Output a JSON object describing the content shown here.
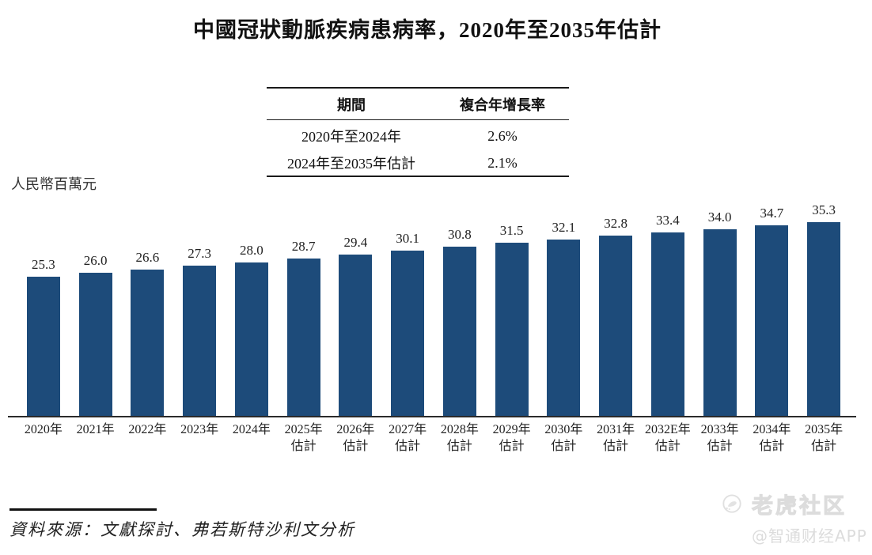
{
  "title": "中國冠狀動脈疾病患病率，2020年至2035年估計",
  "unit_label": "人民幣百萬元",
  "cagr_table": {
    "headers": [
      "期間",
      "複合年增長率"
    ],
    "rows": [
      {
        "period": "2020年至2024年",
        "value": "2.6%"
      },
      {
        "period": "2024年至2035年估計",
        "value": "2.1%"
      }
    ]
  },
  "source_note": "資料來源：文獻探討、弗若斯特沙利文分析",
  "watermarks": {
    "tiger_community": "老虎社区",
    "app_credit": "@智通财经APP",
    "logo_icon": "tiger-circle-icon"
  },
  "colors": {
    "bar": "#1d4b7a",
    "axis": "#2b2b2b",
    "watermark_text": "#dcdcdc"
  },
  "chart_data": {
    "type": "bar",
    "title": "中國冠狀動脈疾病患病率，2020年至2035年估計",
    "xlabel": "",
    "ylabel": "人民幣百萬元",
    "ylim": [
      0,
      36
    ],
    "grid": false,
    "legend": "none",
    "bar_color": "#1d4b7a",
    "categories": [
      "2020年",
      "2021年",
      "2022年",
      "2023年",
      "2024年",
      "2025年",
      "2026年",
      "2027年",
      "2028年",
      "2029年",
      "2030年",
      "2031年",
      "2032E年",
      "2033年",
      "2034年",
      "2035年"
    ],
    "category_sublabels": [
      "",
      "",
      "",
      "",
      "",
      "估計",
      "估計",
      "估計",
      "估計",
      "估計",
      "估計",
      "估計",
      "估計",
      "估計",
      "估計",
      "估計"
    ],
    "values": [
      25.3,
      26.0,
      26.6,
      27.3,
      28.0,
      28.7,
      29.4,
      30.1,
      30.8,
      31.5,
      32.1,
      32.8,
      33.4,
      34.0,
      34.7,
      35.3
    ],
    "value_labels": [
      "25.3",
      "26.0",
      "26.6",
      "27.3",
      "28.0",
      "28.7",
      "29.4",
      "30.1",
      "30.8",
      "31.5",
      "32.1",
      "32.8",
      "33.4",
      "34.0",
      "34.7",
      "35.3"
    ]
  }
}
